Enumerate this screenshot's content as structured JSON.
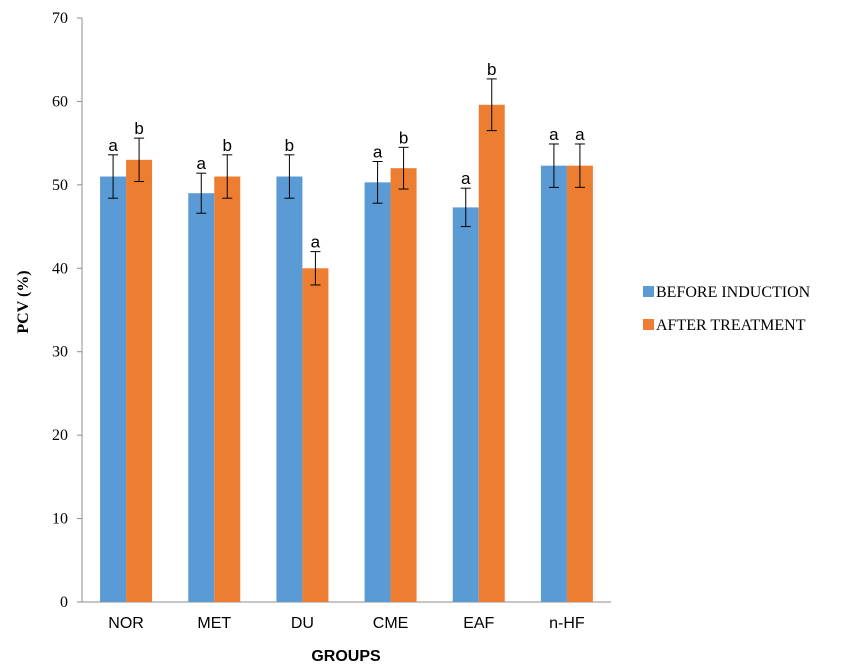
{
  "chart_data": {
    "type": "bar",
    "title": "",
    "xlabel": "GROUPS",
    "ylabel": "PCV (%)",
    "ylim": [
      0,
      70
    ],
    "yticks": [
      "0",
      "10",
      "20",
      "30",
      "40",
      "50",
      "60",
      "70"
    ],
    "ytick_values": [
      0,
      10,
      20,
      30,
      40,
      50,
      60,
      70
    ],
    "categories": [
      "NOR",
      "MET",
      "DU",
      "CME",
      "EAF",
      "n-HF"
    ],
    "grid": false,
    "legend_position": "right",
    "series": [
      {
        "name": "BEFORE INDUCTION",
        "color": "#5B9BD5",
        "values": [
          51,
          49,
          51,
          50.3,
          47.3,
          52.3
        ],
        "errors": [
          2.6,
          2.4,
          2.6,
          2.5,
          2.3,
          2.6
        ],
        "labels": [
          "a",
          "a",
          "b",
          "a",
          "a",
          "a"
        ]
      },
      {
        "name": "AFTER TREATMENT",
        "color": "#ED7D31",
        "values": [
          53,
          51,
          40,
          52,
          59.6,
          52.3
        ],
        "errors": [
          2.6,
          2.6,
          2.0,
          2.5,
          3.1,
          2.6
        ],
        "labels": [
          "b",
          "b",
          "a",
          "b",
          "b",
          "a"
        ]
      }
    ]
  }
}
